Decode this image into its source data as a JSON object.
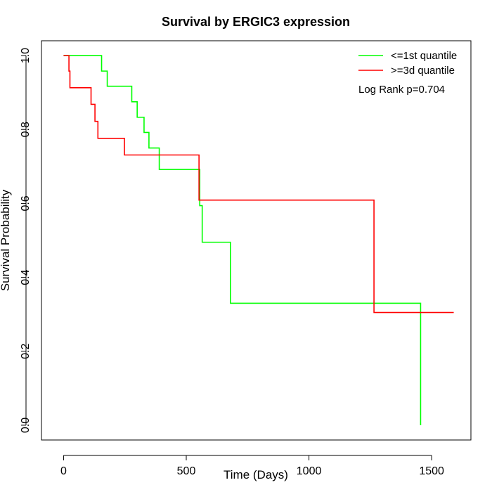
{
  "chart_data": {
    "type": "line",
    "subtype": "kaplan-meier",
    "title": "Survival by ERGIC3 expression",
    "xlabel": "Time (Days)",
    "ylabel": "Survival Probability",
    "xlim": [
      -90,
      1660
    ],
    "ylim": [
      -0.04,
      1.04
    ],
    "xticks": [
      0,
      500,
      1000,
      1500
    ],
    "yticks": [
      0.0,
      0.2,
      0.4,
      0.6,
      0.8,
      1.0
    ],
    "xtick_labels": [
      "0",
      "500",
      "1000",
      "1500"
    ],
    "ytick_labels": [
      "0.0",
      "0.2",
      "0.4",
      "0.6",
      "0.8",
      "1.0"
    ],
    "legend_position": "top-right",
    "annotation": "Log Rank p=0.704",
    "series": [
      {
        "name": "<=1st quantile",
        "color": "#00ff00",
        "points": [
          [
            0,
            1.0
          ],
          [
            155,
            1.0
          ],
          [
            155,
            0.958
          ],
          [
            178,
            0.958
          ],
          [
            178,
            0.917
          ],
          [
            278,
            0.917
          ],
          [
            278,
            0.875
          ],
          [
            300,
            0.875
          ],
          [
            300,
            0.833
          ],
          [
            328,
            0.833
          ],
          [
            328,
            0.792
          ],
          [
            348,
            0.792
          ],
          [
            348,
            0.75
          ],
          [
            390,
            0.75
          ],
          [
            390,
            0.692
          ],
          [
            555,
            0.692
          ],
          [
            555,
            0.594
          ],
          [
            565,
            0.594
          ],
          [
            565,
            0.495
          ],
          [
            680,
            0.495
          ],
          [
            680,
            0.33
          ],
          [
            1455,
            0.33
          ],
          [
            1455,
            0.0
          ]
        ]
      },
      {
        "name": ">=3d quantile",
        "color": "#ff0000",
        "points": [
          [
            0,
            1.0
          ],
          [
            22,
            1.0
          ],
          [
            22,
            0.958
          ],
          [
            26,
            0.958
          ],
          [
            26,
            0.913
          ],
          [
            112,
            0.913
          ],
          [
            112,
            0.868
          ],
          [
            128,
            0.868
          ],
          [
            128,
            0.822
          ],
          [
            140,
            0.822
          ],
          [
            140,
            0.776
          ],
          [
            248,
            0.776
          ],
          [
            248,
            0.731
          ],
          [
            552,
            0.731
          ],
          [
            552,
            0.609
          ],
          [
            1265,
            0.609
          ],
          [
            1265,
            0.305
          ],
          [
            1590,
            0.305
          ]
        ]
      }
    ]
  }
}
